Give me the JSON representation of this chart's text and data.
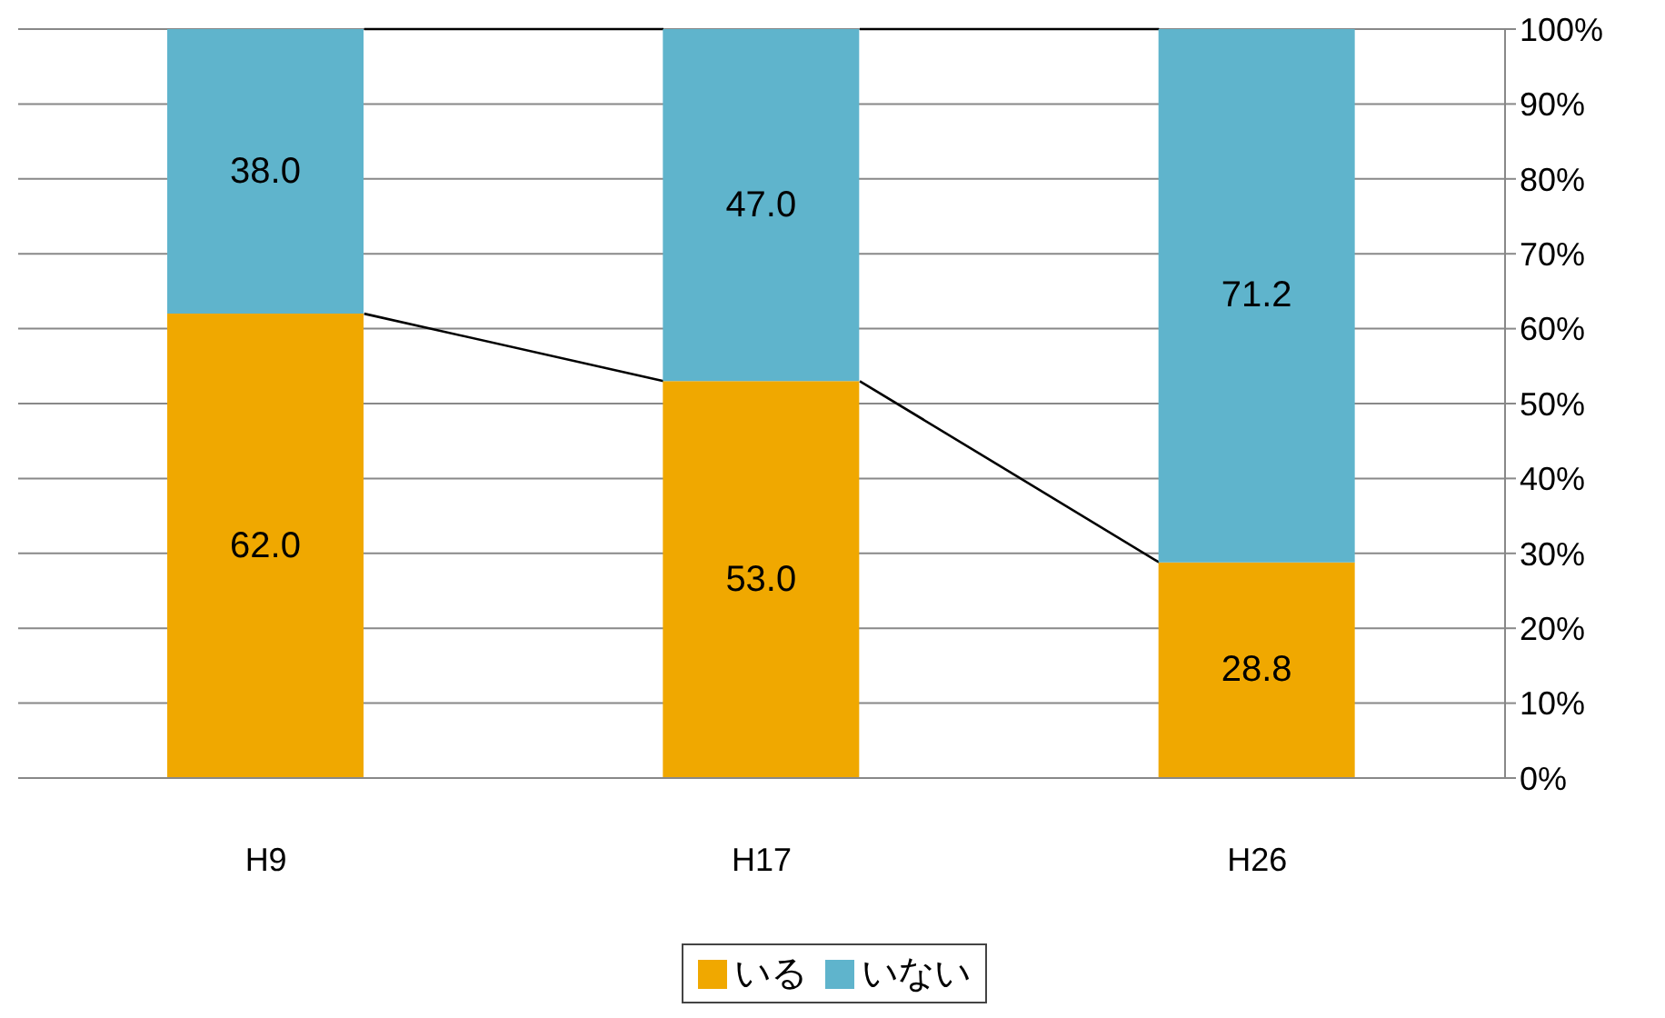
{
  "chart_data": {
    "type": "bar",
    "stacked": true,
    "categories": [
      "H9",
      "H17",
      "H26"
    ],
    "series": [
      {
        "name": "いる",
        "color": "#f0a800",
        "values": [
          62.0,
          53.0,
          28.8
        ],
        "value_labels": [
          "62.0",
          "53.0",
          "28.8"
        ]
      },
      {
        "name": "いない",
        "color": "#5fb4cc",
        "values": [
          38.0,
          47.0,
          71.2
        ],
        "value_labels": [
          "38.0",
          "47.0",
          "71.2"
        ]
      }
    ],
    "ylim": [
      0,
      100
    ],
    "yticks": [
      {
        "value": 0,
        "label": "0%"
      },
      {
        "value": 10,
        "label": "10%"
      },
      {
        "value": 20,
        "label": "20%"
      },
      {
        "value": 30,
        "label": "30%"
      },
      {
        "value": 40,
        "label": "40%"
      },
      {
        "value": 50,
        "label": "50%"
      },
      {
        "value": 60,
        "label": "60%"
      },
      {
        "value": 70,
        "label": "70%"
      },
      {
        "value": 80,
        "label": "80%"
      },
      {
        "value": 90,
        "label": "90%"
      },
      {
        "value": 100,
        "label": "100%"
      }
    ],
    "grid": "y",
    "legend": "bottom"
  }
}
